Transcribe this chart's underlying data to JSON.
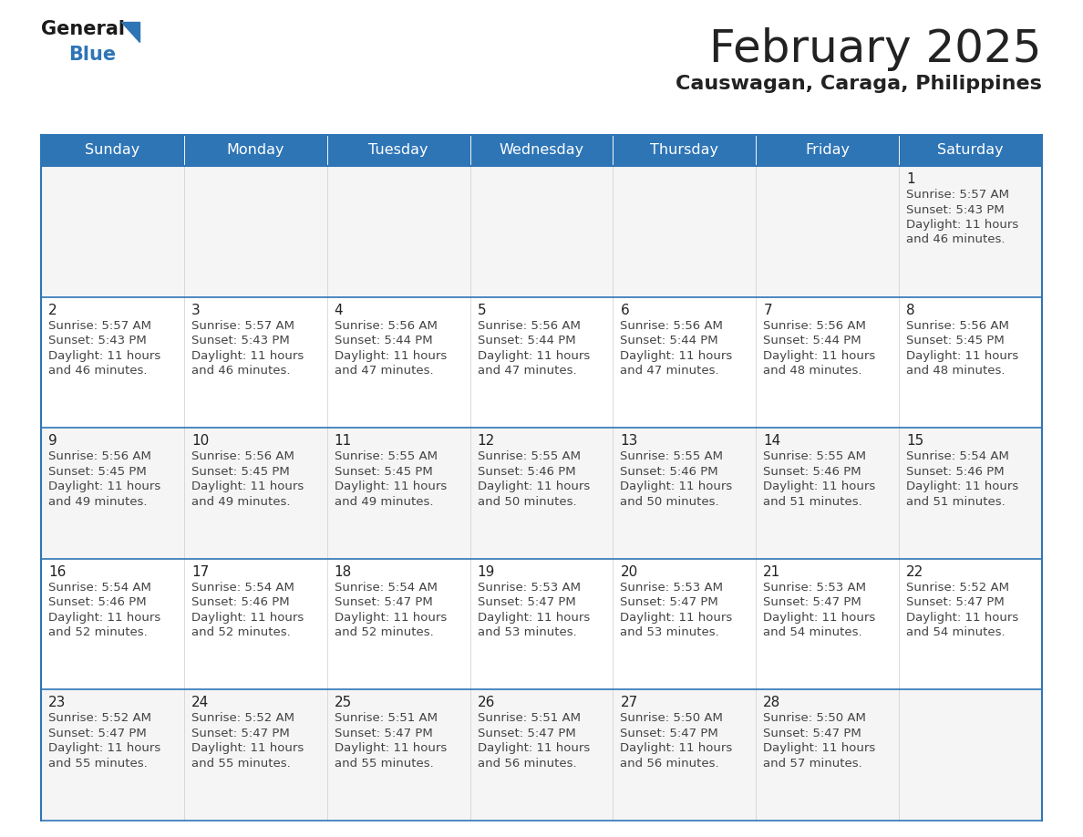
{
  "title": "February 2025",
  "subtitle": "Causwagan, Caraga, Philippines",
  "header_bg": "#2E75B6",
  "header_text_color": "#FFFFFF",
  "day_names": [
    "Sunday",
    "Monday",
    "Tuesday",
    "Wednesday",
    "Thursday",
    "Friday",
    "Saturday"
  ],
  "border_color": "#2E75B6",
  "day_num_color": "#222222",
  "info_text_color": "#444444",
  "logo_general_color": "#1a1a1a",
  "logo_blue_color": "#2E75B6",
  "cell_bg_odd": "#F5F5F5",
  "cell_bg_even": "#FFFFFF",
  "days": [
    {
      "date": 1,
      "row": 0,
      "col": 6,
      "sunrise": "5:57 AM",
      "sunset": "5:43 PM",
      "daylight": "11 hours and 46 minutes"
    },
    {
      "date": 2,
      "row": 1,
      "col": 0,
      "sunrise": "5:57 AM",
      "sunset": "5:43 PM",
      "daylight": "11 hours and 46 minutes"
    },
    {
      "date": 3,
      "row": 1,
      "col": 1,
      "sunrise": "5:57 AM",
      "sunset": "5:43 PM",
      "daylight": "11 hours and 46 minutes"
    },
    {
      "date": 4,
      "row": 1,
      "col": 2,
      "sunrise": "5:56 AM",
      "sunset": "5:44 PM",
      "daylight": "11 hours and 47 minutes"
    },
    {
      "date": 5,
      "row": 1,
      "col": 3,
      "sunrise": "5:56 AM",
      "sunset": "5:44 PM",
      "daylight": "11 hours and 47 minutes"
    },
    {
      "date": 6,
      "row": 1,
      "col": 4,
      "sunrise": "5:56 AM",
      "sunset": "5:44 PM",
      "daylight": "11 hours and 47 minutes"
    },
    {
      "date": 7,
      "row": 1,
      "col": 5,
      "sunrise": "5:56 AM",
      "sunset": "5:44 PM",
      "daylight": "11 hours and 48 minutes"
    },
    {
      "date": 8,
      "row": 1,
      "col": 6,
      "sunrise": "5:56 AM",
      "sunset": "5:45 PM",
      "daylight": "11 hours and 48 minutes"
    },
    {
      "date": 9,
      "row": 2,
      "col": 0,
      "sunrise": "5:56 AM",
      "sunset": "5:45 PM",
      "daylight": "11 hours and 49 minutes"
    },
    {
      "date": 10,
      "row": 2,
      "col": 1,
      "sunrise": "5:56 AM",
      "sunset": "5:45 PM",
      "daylight": "11 hours and 49 minutes"
    },
    {
      "date": 11,
      "row": 2,
      "col": 2,
      "sunrise": "5:55 AM",
      "sunset": "5:45 PM",
      "daylight": "11 hours and 49 minutes"
    },
    {
      "date": 12,
      "row": 2,
      "col": 3,
      "sunrise": "5:55 AM",
      "sunset": "5:46 PM",
      "daylight": "11 hours and 50 minutes"
    },
    {
      "date": 13,
      "row": 2,
      "col": 4,
      "sunrise": "5:55 AM",
      "sunset": "5:46 PM",
      "daylight": "11 hours and 50 minutes"
    },
    {
      "date": 14,
      "row": 2,
      "col": 5,
      "sunrise": "5:55 AM",
      "sunset": "5:46 PM",
      "daylight": "11 hours and 51 minutes"
    },
    {
      "date": 15,
      "row": 2,
      "col": 6,
      "sunrise": "5:54 AM",
      "sunset": "5:46 PM",
      "daylight": "11 hours and 51 minutes"
    },
    {
      "date": 16,
      "row": 3,
      "col": 0,
      "sunrise": "5:54 AM",
      "sunset": "5:46 PM",
      "daylight": "11 hours and 52 minutes"
    },
    {
      "date": 17,
      "row": 3,
      "col": 1,
      "sunrise": "5:54 AM",
      "sunset": "5:46 PM",
      "daylight": "11 hours and 52 minutes"
    },
    {
      "date": 18,
      "row": 3,
      "col": 2,
      "sunrise": "5:54 AM",
      "sunset": "5:47 PM",
      "daylight": "11 hours and 52 minutes"
    },
    {
      "date": 19,
      "row": 3,
      "col": 3,
      "sunrise": "5:53 AM",
      "sunset": "5:47 PM",
      "daylight": "11 hours and 53 minutes"
    },
    {
      "date": 20,
      "row": 3,
      "col": 4,
      "sunrise": "5:53 AM",
      "sunset": "5:47 PM",
      "daylight": "11 hours and 53 minutes"
    },
    {
      "date": 21,
      "row": 3,
      "col": 5,
      "sunrise": "5:53 AM",
      "sunset": "5:47 PM",
      "daylight": "11 hours and 54 minutes"
    },
    {
      "date": 22,
      "row": 3,
      "col": 6,
      "sunrise": "5:52 AM",
      "sunset": "5:47 PM",
      "daylight": "11 hours and 54 minutes"
    },
    {
      "date": 23,
      "row": 4,
      "col": 0,
      "sunrise": "5:52 AM",
      "sunset": "5:47 PM",
      "daylight": "11 hours and 55 minutes"
    },
    {
      "date": 24,
      "row": 4,
      "col": 1,
      "sunrise": "5:52 AM",
      "sunset": "5:47 PM",
      "daylight": "11 hours and 55 minutes"
    },
    {
      "date": 25,
      "row": 4,
      "col": 2,
      "sunrise": "5:51 AM",
      "sunset": "5:47 PM",
      "daylight": "11 hours and 55 minutes"
    },
    {
      "date": 26,
      "row": 4,
      "col": 3,
      "sunrise": "5:51 AM",
      "sunset": "5:47 PM",
      "daylight": "11 hours and 56 minutes"
    },
    {
      "date": 27,
      "row": 4,
      "col": 4,
      "sunrise": "5:50 AM",
      "sunset": "5:47 PM",
      "daylight": "11 hours and 56 minutes"
    },
    {
      "date": 28,
      "row": 4,
      "col": 5,
      "sunrise": "5:50 AM",
      "sunset": "5:47 PM",
      "daylight": "11 hours and 57 minutes"
    }
  ]
}
